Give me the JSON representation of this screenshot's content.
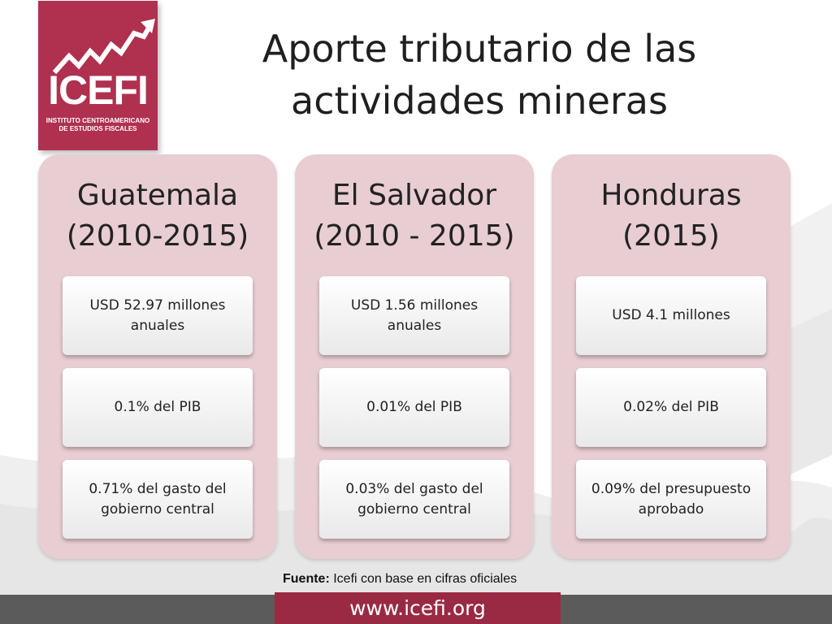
{
  "logo": {
    "name": "ICEFI",
    "subtitle_line1": "INSTITUTO CENTROAMERICANO",
    "subtitle_line2": "DE ESTUDIOS FISCALES"
  },
  "title": {
    "line1": "Aporte tributario de las",
    "line2": "actividades mineras"
  },
  "columns": [
    {
      "heading_line1": "Guatemala",
      "heading_line2": "(2010-2015)",
      "items": [
        "USD 52.97 millones anuales",
        "0.1% del PIB",
        "0.71% del gasto del gobierno central"
      ]
    },
    {
      "heading_line1": "El Salvador",
      "heading_line2": "(2010 - 2015)",
      "items": [
        "USD 1.56 millones anuales",
        "0.01% del PIB",
        "0.03% del gasto del gobierno central"
      ]
    },
    {
      "heading_line1": "Honduras",
      "heading_line2": "(2015)",
      "items": [
        "USD 4.1 millones",
        "0.02% del PIB",
        "0.09% del presupuesto aprobado"
      ]
    }
  ],
  "source": {
    "label": "Fuente:",
    "text": " Icefi con base en cifras oficiales"
  },
  "footer": {
    "url": "www.icefi.org"
  },
  "colors": {
    "brand": "#b0304f",
    "column_bg": "#e8cdd2",
    "footer_bar": "#5b5b5b",
    "footer_accent": "#9a2a44"
  },
  "icons": [
    "trend-line-icon"
  ]
}
